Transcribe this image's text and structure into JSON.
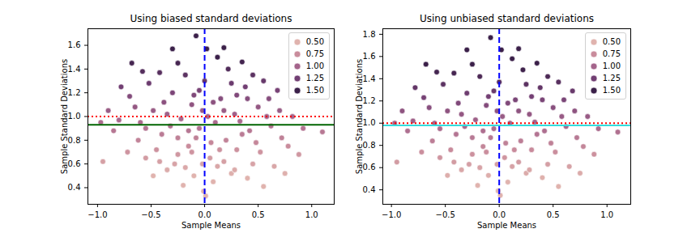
{
  "chart_data": [
    {
      "type": "scatter",
      "title": "Using biased standard deviations",
      "x_label": "Sample Means",
      "y_label": "Sample Standard Deviations",
      "marker": "circle",
      "x": [
        -0.97,
        -0.95,
        1.1,
        -0.08,
        0.02,
        0.01,
        -0.01,
        -0.2,
        0.55,
        0.75,
        -0.3,
        0.18,
        -0.42,
        0.35,
        -0.78,
        -0.7,
        0.68,
        0.82,
        0.78,
        -0.62,
        -0.55,
        0.45,
        -0.35,
        0.25,
        -0.1,
        0.12,
        -0.25,
        0.3,
        0.05,
        -0.15,
        0.2,
        -0.4,
        0.42,
        -0.05,
        0.1,
        -0.22,
        0.28,
        -0.48,
        0.5,
        -0.12,
        0.15,
        -0.3,
        0.38,
        0.0,
        -0.18,
        0.22,
        -0.6,
        0.62,
        -0.85,
        0.88,
        -0.08,
        0.06,
        -0.32,
        0.33,
        -0.45,
        0.48,
        -0.02,
        0.08,
        -0.38,
        0.4,
        -0.52,
        0.55,
        -0.25,
        0.12,
        -0.65,
        0.7,
        0.92,
        -0.9,
        -0.72,
        0.65,
        -0.28,
        0.18,
        -0.12,
        0.35,
        0.58,
        -0.58,
        0.25,
        -0.05,
        0.03,
        -0.15,
        0.45,
        -0.35,
        0.14,
        -0.42,
        0.72,
        -0.8,
        0.28,
        -0.18,
        0.08,
        -0.48,
        0.4,
        -0.02,
        0.52,
        -0.68,
        0.3,
        -0.1,
        0.6,
        -0.25,
        0.18,
        -0.55
      ],
      "values": [
        0.95,
        0.62,
        0.87,
        1.68,
        1.57,
        0.33,
        0.37,
        0.42,
        0.41,
        0.52,
        1.57,
        1.58,
        1.37,
        1.46,
        1.25,
        1.17,
        1.22,
        1.0,
        0.75,
        0.8,
        0.65,
        0.6,
        0.55,
        0.52,
        0.5,
        0.58,
        0.68,
        0.72,
        0.65,
        0.75,
        0.8,
        0.85,
        0.88,
        0.9,
        0.95,
        0.98,
        1.02,
        1.05,
        1.08,
        1.1,
        1.15,
        1.2,
        1.25,
        1.3,
        1.35,
        1.4,
        0.95,
        0.92,
        0.88,
        0.68,
        0.82,
        0.78,
        0.92,
        0.96,
        0.72,
        0.78,
        1.05,
        1.12,
        1.12,
        1.15,
        1.28,
        1.3,
        1.45,
        1.5,
        1.08,
        1.05,
        0.9,
        1.05,
        0.7,
        0.58,
        0.6,
        0.62,
        0.7,
        0.85,
        1.0,
        1.38,
        1.28,
        1.22,
        1.0,
        0.88,
        1.35,
        1.02,
        0.72,
        0.62,
        0.82,
        0.97,
        0.55,
        0.57,
        0.45,
        0.5,
        0.48,
        0.6,
        0.7,
        1.45,
        1.18,
        1.18,
        1.15,
        0.82,
        1.05,
        0.9
      ],
      "xlim": [
        -1.09,
        1.21
      ],
      "ylim": [
        0.26,
        1.74
      ],
      "xticks": [
        {
          "value": -1.0,
          "label": "−1.0"
        },
        {
          "value": -0.5,
          "label": "−0.5"
        },
        {
          "value": 0.0,
          "label": "0.0"
        },
        {
          "value": 0.5,
          "label": "0.5"
        },
        {
          "value": 1.0,
          "label": "1.0"
        }
      ],
      "yticks": [
        0.4,
        0.6,
        0.8,
        {
          "value": 1.0,
          "label": "1.0"
        },
        1.2,
        1.4,
        1.6
      ],
      "grid": false,
      "legend": "upper right",
      "color_legend": {
        "values": [
          0.5,
          0.75,
          1.0,
          1.25,
          1.5
        ],
        "labels": [
          "0.50",
          "0.75",
          "1.00",
          "1.25",
          "1.50"
        ],
        "colors": [
          "#e0b3ae",
          "#c98c9c",
          "#a4648b",
          "#723f73",
          "#3b2049"
        ]
      },
      "reference_lines": [
        {
          "axis": "x",
          "value": 0.0,
          "color": "#0000ff",
          "line_style": "dashed"
        },
        {
          "axis": "y",
          "value": 1.0,
          "color": "#ff0000",
          "line_style": "dotted"
        },
        {
          "axis": "y",
          "value": 0.93,
          "color": "#006400",
          "line_style": "solid"
        }
      ]
    },
    {
      "type": "scatter",
      "title": "Using unbiased standard deviations",
      "x_label": "Sample Means",
      "y_label": "Sample Standard Deviations",
      "marker": "circle",
      "x": [
        -0.97,
        -0.95,
        1.1,
        -0.08,
        0.02,
        0.01,
        -0.01,
        -0.2,
        0.55,
        0.75,
        -0.3,
        0.18,
        -0.42,
        0.35,
        -0.78,
        -0.7,
        0.68,
        0.82,
        0.78,
        -0.62,
        -0.55,
        0.45,
        -0.35,
        0.25,
        -0.1,
        0.12,
        -0.25,
        0.3,
        0.05,
        -0.15,
        0.2,
        -0.4,
        0.42,
        -0.05,
        0.1,
        -0.22,
        0.28,
        -0.48,
        0.5,
        -0.12,
        0.15,
        -0.3,
        0.38,
        0.0,
        -0.18,
        0.22,
        -0.6,
        0.62,
        -0.85,
        0.88,
        -0.08,
        0.06,
        -0.32,
        0.33,
        -0.45,
        0.48,
        -0.02,
        0.08,
        -0.38,
        0.4,
        -0.52,
        0.55,
        -0.25,
        0.12,
        -0.65,
        0.7,
        0.92,
        -0.9,
        -0.72,
        0.65,
        -0.28,
        0.18,
        -0.12,
        0.35,
        0.58,
        -0.58,
        0.25,
        -0.05,
        0.03,
        -0.15,
        0.45,
        -0.35,
        0.14,
        -0.42,
        0.72,
        -0.8,
        0.28,
        -0.18,
        0.08,
        -0.48,
        0.4,
        -0.02,
        0.52,
        -0.68,
        0.3,
        -0.1,
        0.6,
        -0.25,
        0.18,
        -0.55
      ],
      "values": [
        1.0,
        0.65,
        0.92,
        1.77,
        1.66,
        0.35,
        0.39,
        0.44,
        0.43,
        0.55,
        1.66,
        1.67,
        1.45,
        1.54,
        1.32,
        1.23,
        1.29,
        1.06,
        0.79,
        0.84,
        0.69,
        0.63,
        0.58,
        0.55,
        0.53,
        0.61,
        0.72,
        0.76,
        0.69,
        0.79,
        0.84,
        0.9,
        0.93,
        0.95,
        1.0,
        1.03,
        1.08,
        1.11,
        1.14,
        1.16,
        1.21,
        1.27,
        1.32,
        1.37,
        1.42,
        1.48,
        1.0,
        0.97,
        0.93,
        0.72,
        0.87,
        0.82,
        0.97,
        1.01,
        0.76,
        0.82,
        1.11,
        1.18,
        1.18,
        1.21,
        1.35,
        1.37,
        1.53,
        1.58,
        1.14,
        1.11,
        0.95,
        1.11,
        0.74,
        0.61,
        0.63,
        0.65,
        0.74,
        0.9,
        1.06,
        1.46,
        1.35,
        1.29,
        1.06,
        0.93,
        1.42,
        1.08,
        0.76,
        0.65,
        0.87,
        1.02,
        0.58,
        0.6,
        0.47,
        0.53,
        0.51,
        0.63,
        0.74,
        1.53,
        1.24,
        1.24,
        1.21,
        0.87,
        1.11,
        0.95
      ],
      "xlim": [
        -1.08,
        1.22
      ],
      "ylim": [
        0.27,
        1.85
      ],
      "xticks": [
        {
          "value": -1.0,
          "label": "−1.0"
        },
        {
          "value": -0.5,
          "label": "−0.5"
        },
        {
          "value": 0.0,
          "label": "0.0"
        },
        {
          "value": 0.5,
          "label": "0.5"
        },
        {
          "value": 1.0,
          "label": "1.0"
        }
      ],
      "yticks": [
        0.4,
        0.6,
        0.8,
        {
          "value": 1.0,
          "label": "1.0"
        },
        1.2,
        1.4,
        1.6,
        1.8
      ],
      "grid": false,
      "legend": "upper right",
      "color_legend": {
        "values": [
          0.5,
          0.75,
          1.0,
          1.25,
          1.5
        ],
        "labels": [
          "0.50",
          "0.75",
          "1.00",
          "1.25",
          "1.50"
        ],
        "colors": [
          "#e0b3ae",
          "#c98c9c",
          "#a4648b",
          "#723f73",
          "#3b2049"
        ]
      },
      "reference_lines": [
        {
          "axis": "x",
          "value": 0.0,
          "color": "#0000ff",
          "line_style": "dashed"
        },
        {
          "axis": "y",
          "value": 1.0,
          "color": "#ff0000",
          "line_style": "dotted"
        },
        {
          "axis": "y",
          "value": 0.98,
          "color": "#33dddd",
          "line_style": "solid"
        }
      ]
    }
  ]
}
